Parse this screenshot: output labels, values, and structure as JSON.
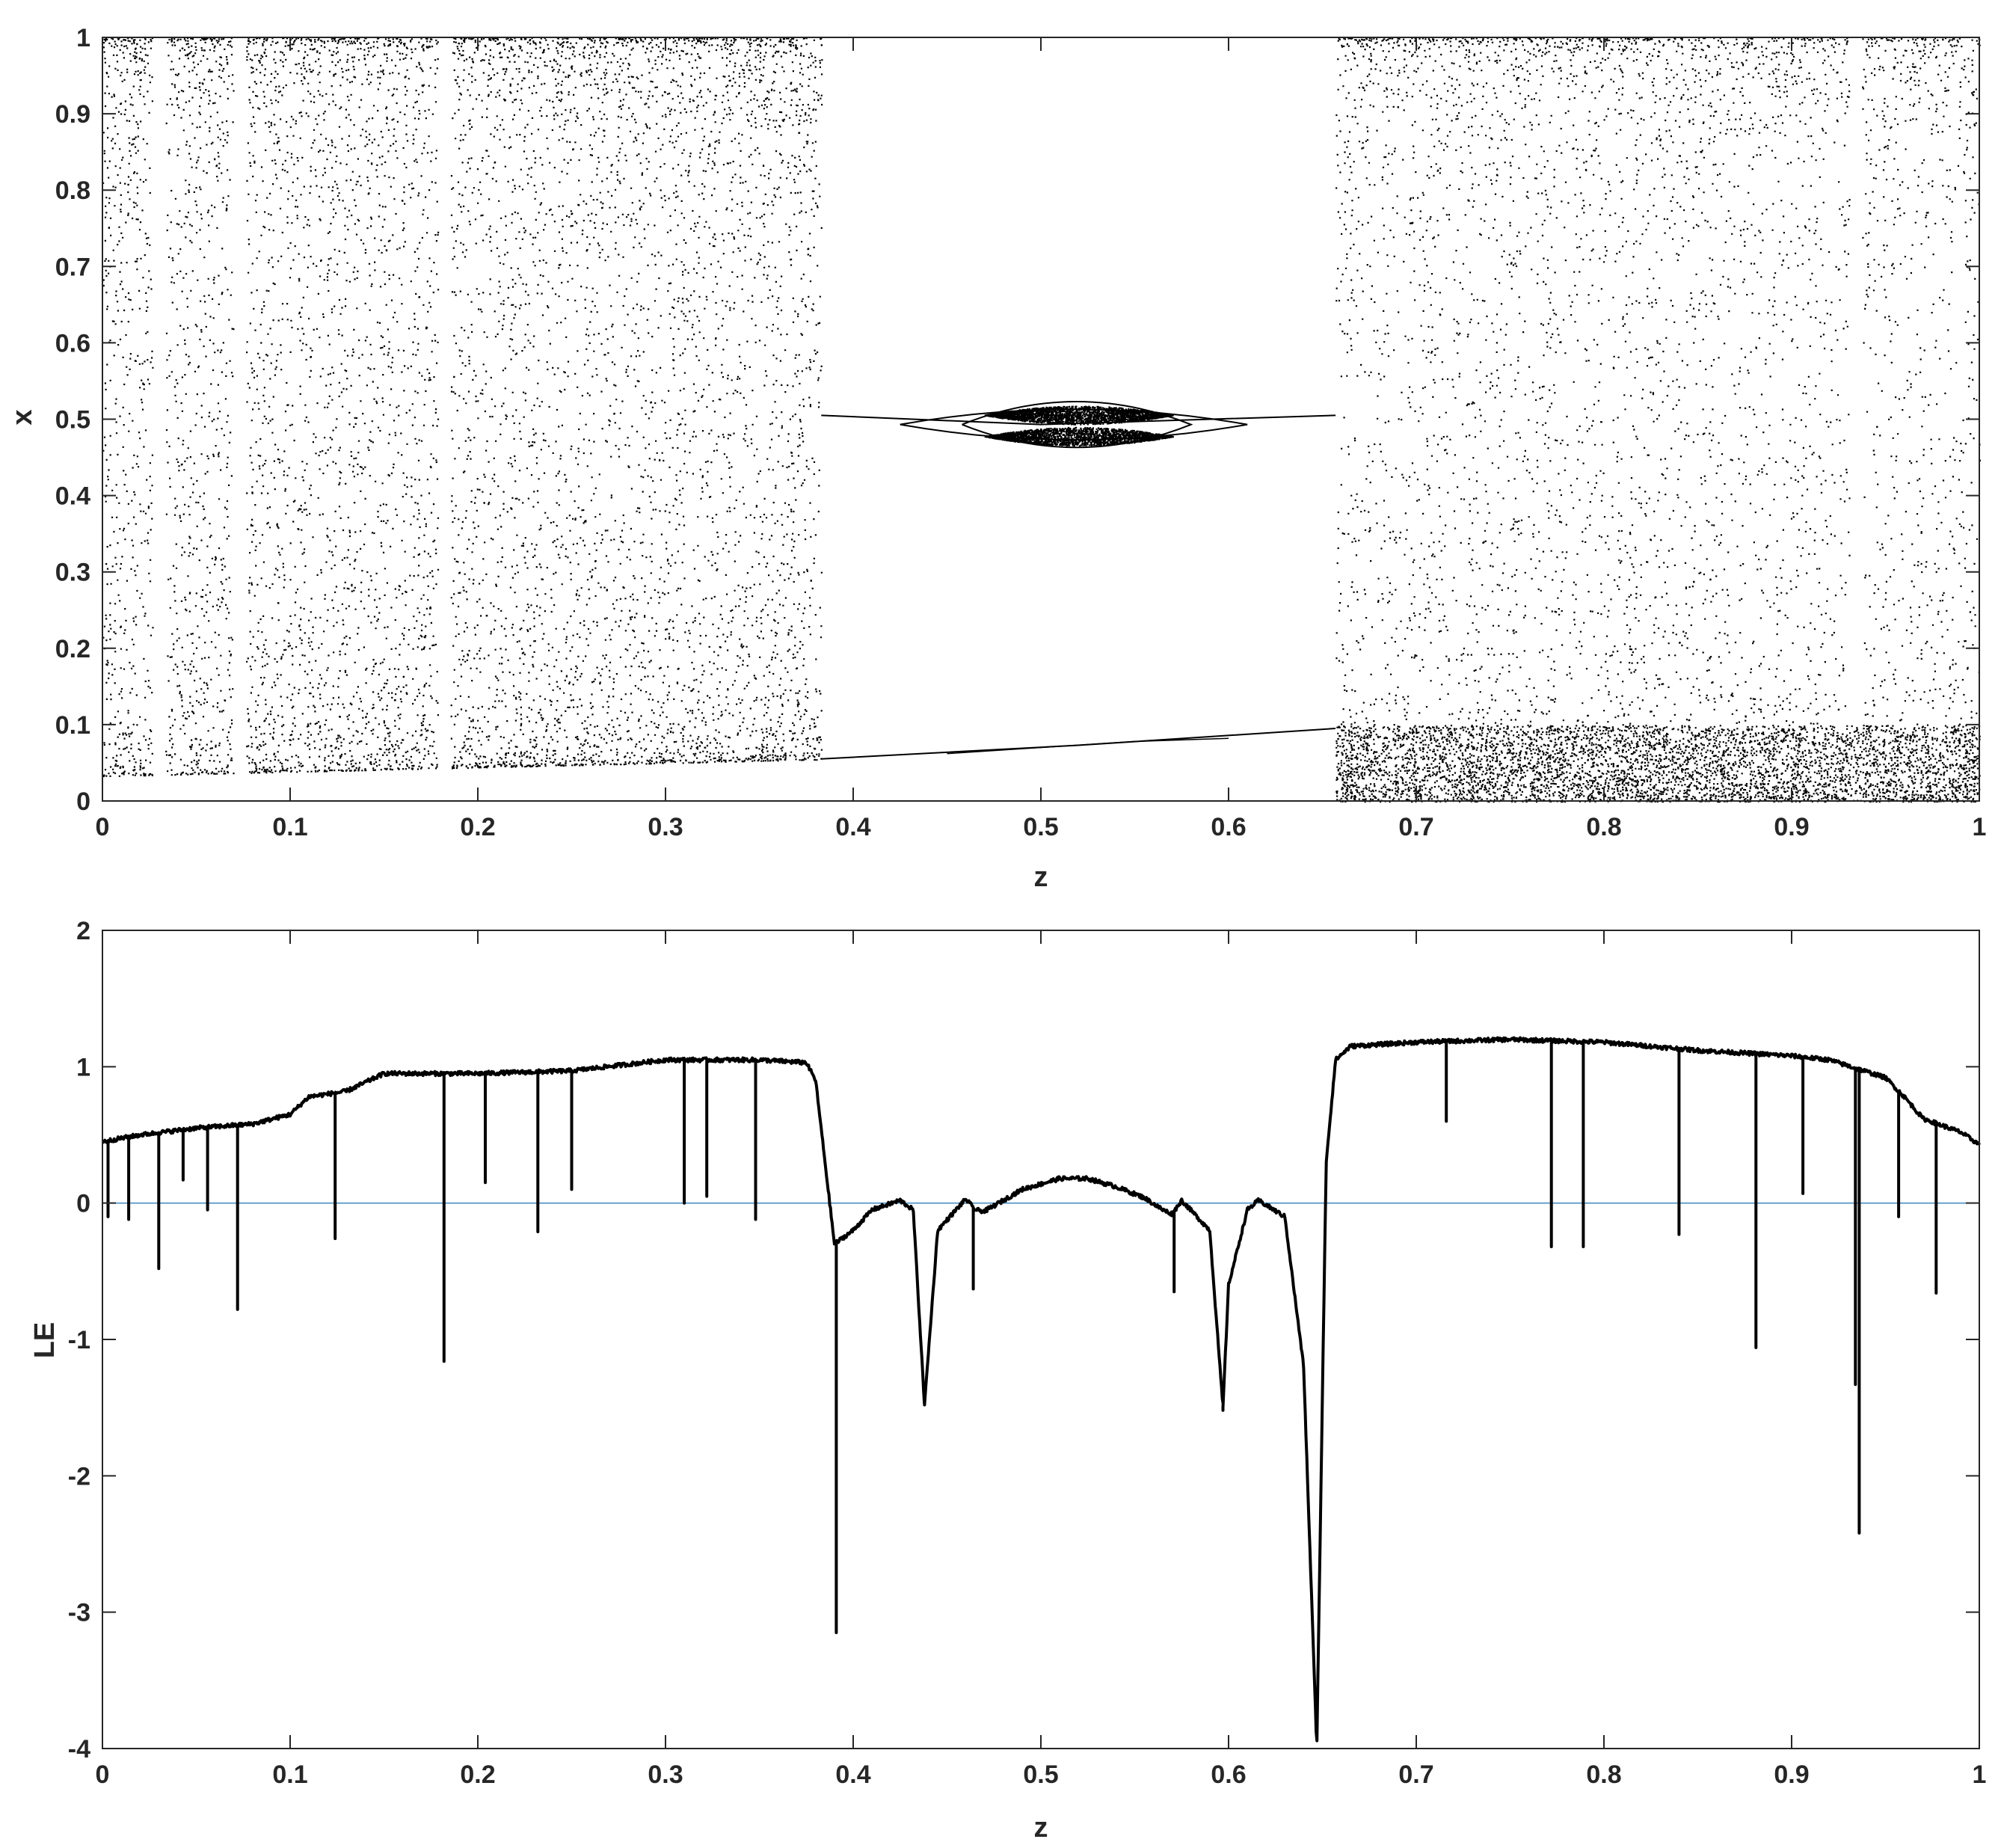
{
  "chart_data": [
    {
      "type": "scatter",
      "xlabel": "z",
      "ylabel": "x",
      "xlim": [
        0,
        1
      ],
      "ylim": [
        0,
        1
      ],
      "xticks": [
        "0",
        "0.1",
        "0.2",
        "0.3",
        "0.4",
        "0.5",
        "0.6",
        "0.7",
        "0.8",
        "0.9",
        "1"
      ],
      "yticks": [
        "0",
        "0.1",
        "0.2",
        "0.3",
        "0.4",
        "0.5",
        "0.6",
        "0.7",
        "0.8",
        "0.9",
        "1"
      ],
      "marker_color": "#000000",
      "chaotic_bands": [
        {
          "z_start": 0.0,
          "z_end": 0.383,
          "x_min_start": 0.033,
          "x_min_end": 0.055,
          "x_max": 1.0
        },
        {
          "z_start": 0.657,
          "z_end": 1.0,
          "x_min_start": 0.0,
          "x_min_end": 0.0,
          "x_max": 1.0
        }
      ],
      "periodic_window": {
        "z_start": 0.383,
        "z_end": 0.657,
        "upper_branch": [
          [
            0.383,
            0.505
          ],
          [
            0.5,
            0.493
          ],
          [
            0.657,
            0.505
          ]
        ],
        "lower_branch": [
          [
            0.383,
            0.055
          ],
          [
            0.52,
            0.073
          ],
          [
            0.657,
            0.095
          ]
        ]
      },
      "gaps": [
        0.03,
        0.073,
        0.182,
        0.934
      ]
    },
    {
      "type": "line",
      "xlabel": "z",
      "ylabel": "LE",
      "xlim": [
        0,
        1
      ],
      "ylim": [
        -4,
        2
      ],
      "xticks": [
        "0",
        "0.1",
        "0.2",
        "0.3",
        "0.4",
        "0.5",
        "0.6",
        "0.7",
        "0.8",
        "0.9",
        "1"
      ],
      "yticks": [
        "-4",
        "-3",
        "-2",
        "-1",
        "0",
        "1",
        "2"
      ],
      "line_color": "#000000",
      "zero_line_color": "#4a90c2",
      "envelope": {
        "x": [
          0,
          0.02,
          0.05,
          0.08,
          0.1,
          0.11,
          0.13,
          0.15,
          0.2,
          0.25,
          0.3,
          0.35,
          0.375,
          0.38,
          0.385,
          0.39,
          0.4,
          0.41,
          0.425,
          0.432,
          0.438,
          0.445,
          0.46,
          0.465,
          0.47,
          0.49,
          0.51,
          0.525,
          0.54,
          0.555,
          0.565,
          0.57,
          0.575,
          0.59,
          0.597,
          0.6,
          0.61,
          0.616,
          0.63,
          0.64,
          0.647,
          0.652,
          0.657,
          0.665,
          0.7,
          0.75,
          0.8,
          0.85,
          0.9,
          0.92,
          0.95,
          0.96,
          0.97,
          0.99,
          1.0
        ],
        "y": [
          0.45,
          0.5,
          0.55,
          0.58,
          0.65,
          0.78,
          0.82,
          0.95,
          0.95,
          0.97,
          1.05,
          1.05,
          1.03,
          0.9,
          0.3,
          -0.3,
          -0.2,
          -0.05,
          0.02,
          -0.05,
          -1.48,
          -0.2,
          0.03,
          -0.05,
          -0.06,
          0.1,
          0.18,
          0.18,
          0.12,
          0.04,
          -0.05,
          -0.08,
          0.02,
          -0.2,
          -1.5,
          -0.6,
          -0.05,
          0.02,
          -0.1,
          -1.2,
          -4.0,
          0.3,
          1.05,
          1.15,
          1.18,
          1.2,
          1.18,
          1.12,
          1.08,
          1.05,
          0.92,
          0.78,
          0.62,
          0.52,
          0.43
        ]
      },
      "spikes": [
        {
          "z": 0.003,
          "min": -0.1
        },
        {
          "z": 0.014,
          "min": -0.12
        },
        {
          "z": 0.03,
          "min": -0.48
        },
        {
          "z": 0.043,
          "min": 0.17
        },
        {
          "z": 0.056,
          "min": -0.05
        },
        {
          "z": 0.072,
          "min": -0.78
        },
        {
          "z": 0.124,
          "min": -0.26
        },
        {
          "z": 0.182,
          "min": -1.16
        },
        {
          "z": 0.204,
          "min": 0.15
        },
        {
          "z": 0.232,
          "min": -0.21
        },
        {
          "z": 0.25,
          "min": 0.1
        },
        {
          "z": 0.31,
          "min": 0.0
        },
        {
          "z": 0.322,
          "min": 0.05
        },
        {
          "z": 0.348,
          "min": -0.12
        },
        {
          "z": 0.391,
          "min": -3.15
        },
        {
          "z": 0.438,
          "min": -1.48
        },
        {
          "z": 0.464,
          "min": -0.63
        },
        {
          "z": 0.597,
          "min": -1.52
        },
        {
          "z": 0.571,
          "min": -0.65
        },
        {
          "z": 0.716,
          "min": 0.6
        },
        {
          "z": 0.772,
          "min": -0.32
        },
        {
          "z": 0.789,
          "min": -0.32
        },
        {
          "z": 0.84,
          "min": -0.23
        },
        {
          "z": 0.881,
          "min": -1.06
        },
        {
          "z": 0.906,
          "min": 0.07
        },
        {
          "z": 0.934,
          "min": -1.33
        },
        {
          "z": 0.936,
          "min": -2.42
        },
        {
          "z": 0.957,
          "min": -0.1
        },
        {
          "z": 0.977,
          "min": -0.66
        }
      ]
    }
  ]
}
